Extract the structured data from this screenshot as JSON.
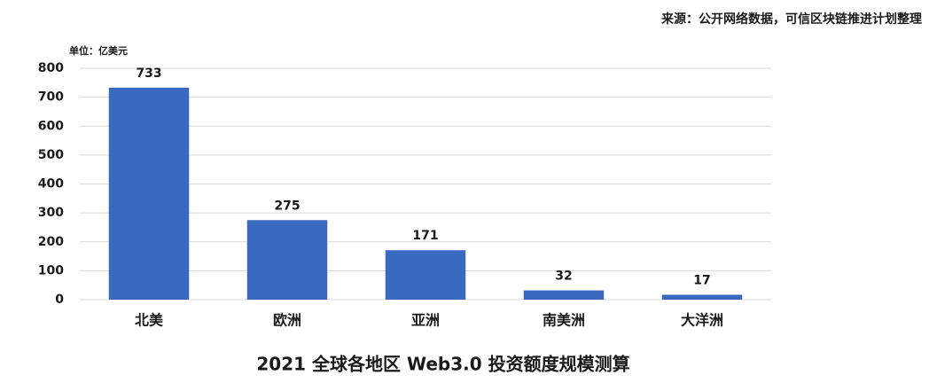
{
  "chart_data": {
    "type": "bar",
    "title": "2021 全球各地区 Web3.0 投资额度规模测算",
    "source": "来源：公开网络数据，可信区块链推进计划整理",
    "unit_label": "单位：亿美元",
    "categories": [
      "北美",
      "欧洲",
      "亚洲",
      "南美洲",
      "大洋洲"
    ],
    "values": [
      733,
      275,
      171,
      32,
      17
    ],
    "color": "#3a6abf",
    "ylim": [
      0,
      800
    ],
    "yticks": [
      0,
      100,
      200,
      300,
      400,
      500,
      600,
      700,
      800
    ],
    "grid": true,
    "show_value_labels": true
  }
}
